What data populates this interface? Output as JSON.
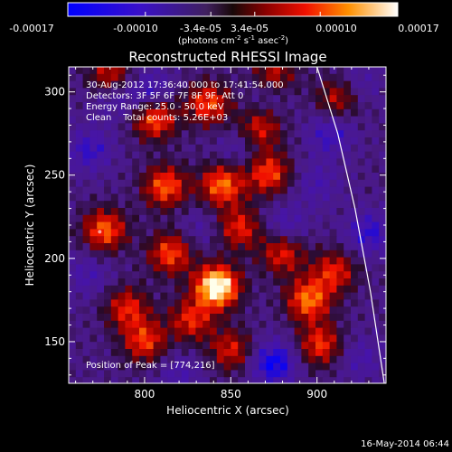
{
  "colorbar": {
    "ticks": [
      "-0.00017",
      "-0.00010",
      "-3.4e-05",
      "3.4e-05",
      "0.00010",
      "0.00017"
    ],
    "units_base": "(photons cm",
    "units_sup1": "-2",
    "units_mid": " s",
    "units_sup2": "-1",
    "units_end": " asec",
    "units_sup3": "-2",
    "units_close": ")"
  },
  "annotations": {
    "time": "30-Aug-2012 17:36:40.000 to 17:41:54.000",
    "detectors": "Detectors: 3F 5F 6F 7F 8F 9F, Att 0",
    "energy": "Energy Range: 25.0 - 50.0 keV",
    "clean": "Clean    Total counts: 5.26E+03",
    "peak": "Position of Peak = [774,216]"
  },
  "footer": {
    "date": "16-May-2014 06:44"
  },
  "chart_data": {
    "type": "heatmap",
    "title": "Reconstructed RHESSI Image",
    "xlabel": "Heliocentric X (arcsec)",
    "ylabel": "Heliocentric Y (arcsec)",
    "xlim": [
      756,
      940
    ],
    "ylim": [
      125,
      315
    ],
    "x_ticks": [
      800,
      850,
      900
    ],
    "y_ticks": [
      150,
      200,
      250,
      300
    ],
    "colorbar_range": [
      -0.00017,
      0.00017
    ],
    "peak_position": [
      774,
      216
    ],
    "limb_curve": {
      "x": [
        900,
        912,
        922,
        931,
        939
      ],
      "y": [
        315,
        275,
        230,
        180,
        125
      ]
    },
    "blobs": [
      {
        "x": 777,
        "y": 217,
        "value": 0.5
      },
      {
        "x": 842,
        "y": 183,
        "value": 1.0
      },
      {
        "x": 812,
        "y": 243,
        "value": 0.5
      },
      {
        "x": 845,
        "y": 244,
        "value": 0.55
      },
      {
        "x": 872,
        "y": 251,
        "value": 0.45
      },
      {
        "x": 806,
        "y": 284,
        "value": 0.5
      },
      {
        "x": 837,
        "y": 293,
        "value": 0.45
      },
      {
        "x": 815,
        "y": 203,
        "value": 0.45
      },
      {
        "x": 895,
        "y": 175,
        "value": 0.55
      },
      {
        "x": 880,
        "y": 203,
        "value": 0.35
      },
      {
        "x": 910,
        "y": 192,
        "value": 0.35
      },
      {
        "x": 855,
        "y": 218,
        "value": 0.35
      },
      {
        "x": 800,
        "y": 150,
        "value": 0.4
      },
      {
        "x": 790,
        "y": 170,
        "value": 0.35
      },
      {
        "x": 850,
        "y": 145,
        "value": 0.3
      },
      {
        "x": 902,
        "y": 148,
        "value": 0.4
      },
      {
        "x": 780,
        "y": 310,
        "value": 0.3
      },
      {
        "x": 867,
        "y": 278,
        "value": 0.3
      },
      {
        "x": 827,
        "y": 163,
        "value": 0.35
      },
      {
        "x": 912,
        "y": 296,
        "value": 0.25
      },
      {
        "x": 875,
        "y": 310,
        "value": 0.3
      },
      {
        "x": 875,
        "y": 137,
        "value": -0.7
      },
      {
        "x": 882,
        "y": 220,
        "value": -0.35
      },
      {
        "x": 930,
        "y": 215,
        "value": -0.5
      },
      {
        "x": 803,
        "y": 300,
        "value": -0.45
      },
      {
        "x": 908,
        "y": 275,
        "value": -0.45
      },
      {
        "x": 768,
        "y": 265,
        "value": -0.45
      },
      {
        "x": 782,
        "y": 296,
        "value": -0.3
      },
      {
        "x": 900,
        "y": 245,
        "value": -0.3
      },
      {
        "x": 767,
        "y": 190,
        "value": -0.3
      },
      {
        "x": 820,
        "y": 130,
        "value": -0.3
      },
      {
        "x": 855,
        "y": 265,
        "value": -0.25
      },
      {
        "x": 925,
        "y": 140,
        "value": -0.3
      },
      {
        "x": 872,
        "y": 300,
        "value": -0.25
      },
      {
        "x": 832,
        "y": 218,
        "value": -0.2
      },
      {
        "x": 925,
        "y": 305,
        "value": -0.25
      }
    ]
  }
}
